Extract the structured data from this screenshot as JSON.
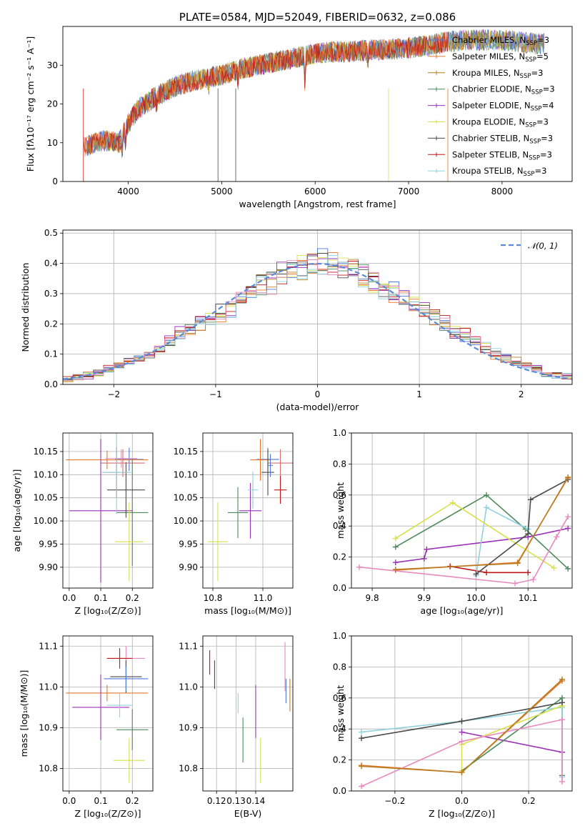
{
  "colors": {
    "series": [
      "#4e79d9",
      "#e8762a",
      "#b87d22",
      "#4e8a5a",
      "#9a2fb8",
      "#d9e04a",
      "#4a4a4a",
      "#c01818",
      "#8fd2de"
    ],
    "err": [
      "#4e79d9",
      "#e8762a",
      "#d96f6f",
      "#4e8a5a",
      "#9a2fb8",
      "#d9e04a",
      "#4a4a4a",
      "#c01818",
      "#8fd2de",
      "#e989bd"
    ],
    "weights": [
      "#e8762a",
      "#c01818",
      "#9a2fb8",
      "#4e8a5a",
      "#8fd2de",
      "#d9e04a",
      "#4a4a4a",
      "#e989bd",
      "#b87d22"
    ],
    "normal_curve": "#5b8bd6"
  },
  "chart_data": [
    {
      "id": "spectrum",
      "type": "line",
      "title": "PLATE=0584, MJD=52049, FIBERID=0632, z=0.086",
      "xlabel": "wavelength [Angstrom, rest frame]",
      "ylabel": "Flux [fλ10⁻¹⁷ erg cm⁻² s⁻¹ A⁻¹]",
      "xlim": [
        3300,
        8750
      ],
      "ylim": [
        0,
        40
      ],
      "xticks": [
        "4000",
        "5000",
        "6000",
        "7000",
        "8000"
      ],
      "yticks": [
        "0",
        "10",
        "20",
        "30"
      ],
      "legend_position": "right",
      "series": [
        {
          "name": "Chabrier MILES, N",
          "sub": "SSP",
          "suffix": "=3"
        },
        {
          "name": "Salpeter MILES, N",
          "sub": "SSP",
          "suffix": "=5"
        },
        {
          "name": "Kroupa MILES, N",
          "sub": "SSP",
          "suffix": "=3"
        },
        {
          "name": "Chabrier ELODIE, N",
          "sub": "SSP",
          "suffix": "=3"
        },
        {
          "name": "Salpeter ELODIE, N",
          "sub": "SSP",
          "suffix": "=4"
        },
        {
          "name": "Kroupa ELODIE, N",
          "sub": "SSP",
          "suffix": "=3"
        },
        {
          "name": "Chabrier STELIB, N",
          "sub": "SSP",
          "suffix": "=3"
        },
        {
          "name": "Salpeter STELIB, N",
          "sub": "SSP",
          "suffix": "=3"
        },
        {
          "name": "Kroupa STELIB, N",
          "sub": "SSP",
          "suffix": "=3"
        }
      ],
      "continuum": {
        "x": [
          3500,
          3600,
          3700,
          3800,
          3900,
          4000,
          4100,
          4300,
          4500,
          4700,
          5000,
          5200,
          5400,
          5600,
          5800,
          6000,
          6200,
          6400,
          6600,
          6800,
          7000,
          7200,
          7400,
          7600,
          7800,
          8000,
          8200,
          8400
        ],
        "y": [
          8.5,
          9.5,
          10.5,
          10.5,
          10,
          15,
          18.5,
          22,
          24.5,
          26,
          27.5,
          29,
          30,
          31,
          32,
          33,
          33.5,
          33.5,
          34,
          34,
          34.5,
          35,
          36,
          36.5,
          36.5,
          36.5,
          36,
          35.5
        ]
      }
    },
    {
      "id": "residual_hist",
      "type": "bar",
      "xlabel": "(data-model)/error",
      "ylabel": "Normed distribution",
      "xlim": [
        -2.5,
        2.5
      ],
      "ylim": [
        0,
        0.51
      ],
      "xticks": [
        "−2",
        "−1",
        "0",
        "1",
        "2"
      ],
      "yticks": [
        "0.0",
        "0.1",
        "0.2",
        "0.3",
        "0.4",
        "0.5"
      ],
      "legend": "𝒩(0, 1)",
      "bins": {
        "start": -2.5,
        "width": 0.1
      },
      "base_values": [
        0.02,
        0.025,
        0.03,
        0.035,
        0.05,
        0.06,
        0.075,
        0.09,
        0.1,
        0.12,
        0.14,
        0.165,
        0.18,
        0.2,
        0.22,
        0.24,
        0.255,
        0.28,
        0.3,
        0.32,
        0.34,
        0.36,
        0.375,
        0.39,
        0.4,
        0.4,
        0.4,
        0.39,
        0.375,
        0.36,
        0.34,
        0.32,
        0.3,
        0.28,
        0.255,
        0.24,
        0.22,
        0.2,
        0.18,
        0.165,
        0.14,
        0.12,
        0.1,
        0.09,
        0.075,
        0.06,
        0.05,
        0.035,
        0.03,
        0.025
      ]
    },
    {
      "id": "age_vs_Z",
      "type": "scatter",
      "xlabel": "Z [log₁₀(Z/Z⊙)]",
      "ylabel": "age  [log₁₀(age/yr)]",
      "xlim": [
        -0.02,
        0.265
      ],
      "ylim": [
        9.855,
        10.19
      ],
      "xticks": [
        "0.0",
        "0.1",
        "0.2"
      ],
      "yticks": [
        "9.90",
        "9.95",
        "10.00",
        "10.05",
        "10.10",
        "10.15"
      ],
      "points": [
        {
          "x": 0.19,
          "y": 10.133,
          "xerr": 0.045,
          "yerr": 0.025,
          "c": 0
        },
        {
          "x": 0.12,
          "y": 10.132,
          "xerr": 0.13,
          "yerr": 0.02,
          "c": 1
        },
        {
          "x": 0.17,
          "y": 10.125,
          "xerr": 0.07,
          "yerr": 0.03,
          "c": 2
        },
        {
          "x": 0.2,
          "y": 10.018,
          "xerr": 0.05,
          "yerr": 0.115,
          "c": 3
        },
        {
          "x": 0.1,
          "y": 10.022,
          "xerr": 0.1,
          "yerr": 0.155,
          "c": 4
        },
        {
          "x": 0.19,
          "y": 9.955,
          "xerr": 0.045,
          "yerr": 0.085,
          "c": 5
        },
        {
          "x": 0.18,
          "y": 10.067,
          "xerr": 0.06,
          "yerr": 0.06,
          "c": 6
        },
        {
          "x": 0.15,
          "y": 10.105,
          "xerr": 0.04,
          "yerr": 0.055,
          "c": 7
        },
        {
          "x": 0.15,
          "y": 10.105,
          "xerr": 0.05,
          "yerr": 0.09,
          "c": 8
        },
        {
          "x": 0.165,
          "y": 10.135,
          "xerr": 0.05,
          "yerr": 0.02,
          "c": 9
        }
      ]
    },
    {
      "id": "age_vs_mass",
      "type": "scatter",
      "xlabel": "mass [log₁₀(M/M⊙)]",
      "ylabel": "",
      "xlim": [
        10.76,
        11.12
      ],
      "ylim": [
        9.855,
        10.19
      ],
      "xticks": [
        "10.8",
        "11.0"
      ],
      "yticks": [
        "9.90",
        "9.95",
        "10.00",
        "10.05",
        "10.10",
        "10.15"
      ],
      "points": [
        {
          "x": 11.02,
          "y": 10.133,
          "xerr": 0.045,
          "yerr": 0.025,
          "c": 0
        },
        {
          "x": 10.99,
          "y": 10.132,
          "xerr": 0.04,
          "yerr": 0.045,
          "c": 1
        },
        {
          "x": 11.07,
          "y": 10.125,
          "xerr": 0.05,
          "yerr": 0.03,
          "c": 2
        },
        {
          "x": 10.9,
          "y": 10.018,
          "xerr": 0.04,
          "yerr": 0.055,
          "c": 3
        },
        {
          "x": 10.95,
          "y": 10.022,
          "xerr": 0.045,
          "yerr": 0.06,
          "c": 4
        },
        {
          "x": 10.82,
          "y": 9.955,
          "xerr": 0.04,
          "yerr": 0.085,
          "c": 5
        },
        {
          "x": 11.02,
          "y": 10.105,
          "xerr": 0.025,
          "yerr": 0.05,
          "c": 6
        },
        {
          "x": 11.07,
          "y": 10.067,
          "xerr": 0.025,
          "yerr": 0.03,
          "c": 7
        },
        {
          "x": 10.96,
          "y": 10.067,
          "xerr": 0.02,
          "yerr": 0.04,
          "c": 8
        },
        {
          "x": 11.03,
          "y": 10.12,
          "xerr": 0.01,
          "yerr": 0.025,
          "c": 0
        }
      ]
    },
    {
      "id": "mass_weight_vs_age",
      "type": "line",
      "xlabel": "age  [log₁₀(age/yr)]",
      "ylabel": "mass weight",
      "xlim": [
        9.76,
        10.185
      ],
      "ylim": [
        0,
        1
      ],
      "xticks": [
        "9.8",
        "9.9",
        "10.0",
        "10.1"
      ],
      "yticks": [
        "0.0",
        "0.2",
        "0.4",
        "0.6",
        "0.8",
        "1.0"
      ],
      "series": [
        {
          "c": 0,
          "x": [
            9.845,
            10.08,
            10.177
          ],
          "y": [
            0.115,
            0.165,
            0.71
          ]
        },
        {
          "c": 1,
          "x": [
            9.95,
            10.02,
            10.1
          ],
          "y": [
            0.14,
            0.1,
            0.1
          ]
        },
        {
          "c": 2,
          "x": [
            9.845,
            9.9,
            9.905,
            10.1,
            10.177
          ],
          "y": [
            0.165,
            0.19,
            0.25,
            0.33,
            0.385
          ]
        },
        {
          "c": 3,
          "x": [
            9.845,
            10.02,
            10.095,
            10.177
          ],
          "y": [
            0.265,
            0.6,
            0.38,
            0.125
          ]
        },
        {
          "c": 4,
          "x": [
            10.0,
            10.02,
            10.1
          ],
          "y": [
            0.08,
            0.52,
            0.38
          ]
        },
        {
          "c": 5,
          "x": [
            9.845,
            9.955,
            10.15
          ],
          "y": [
            0.32,
            0.55,
            0.13
          ]
        },
        {
          "c": 6,
          "x": [
            10.0,
            10.1,
            10.105,
            10.177
          ],
          "y": [
            0.09,
            0.35,
            0.57,
            0.7
          ]
        },
        {
          "c": 7,
          "x": [
            9.775,
            10.075,
            10.11,
            10.155,
            10.177
          ],
          "y": [
            0.135,
            0.03,
            0.055,
            0.33,
            0.46
          ]
        },
        {
          "c": 8,
          "x": [
            9.845,
            10.08,
            10.177
          ],
          "y": [
            0.12,
            0.16,
            0.715
          ]
        }
      ]
    },
    {
      "id": "mass_vs_Z",
      "type": "scatter",
      "xlabel": "Z [log₁₀(Z/Z⊙)]",
      "ylabel": "mass [log₁₀(M/M⊙)]",
      "xlim": [
        -0.02,
        0.265
      ],
      "ylim": [
        10.745,
        11.125
      ],
      "xticks": [
        "0.0",
        "0.1",
        "0.2"
      ],
      "yticks": [
        "10.8",
        "10.9",
        "11.0",
        "11.1"
      ],
      "points": [
        {
          "x": 0.18,
          "y": 11.07,
          "xerr": 0.06,
          "yerr": 0.03,
          "c": 9
        },
        {
          "x": 0.16,
          "y": 11.07,
          "xerr": 0.04,
          "yerr": 0.025,
          "c": 7
        },
        {
          "x": 0.18,
          "y": 11.025,
          "xerr": 0.05,
          "yerr": 0.04,
          "c": 6
        },
        {
          "x": 0.18,
          "y": 11.02,
          "xerr": 0.07,
          "yerr": 0.03,
          "c": 0
        },
        {
          "x": 0.12,
          "y": 10.985,
          "xerr": 0.13,
          "yerr": 0.02,
          "c": 1
        },
        {
          "x": 0.1,
          "y": 10.95,
          "xerr": 0.09,
          "yerr": 0.08,
          "c": 4
        },
        {
          "x": 0.16,
          "y": 10.955,
          "xerr": 0.04,
          "yerr": 0.03,
          "c": 8
        },
        {
          "x": 0.2,
          "y": 10.895,
          "xerr": 0.05,
          "yerr": 0.05,
          "c": 3
        },
        {
          "x": 0.19,
          "y": 10.82,
          "xerr": 0.05,
          "yerr": 0.055,
          "c": 5
        }
      ]
    },
    {
      "id": "mass_vs_EBV",
      "type": "scatter",
      "xlabel": "E(B-V)",
      "ylabel": "",
      "xlim": [
        0.113,
        0.159
      ],
      "ylim": [
        10.745,
        11.125
      ],
      "xticks": [
        "0.12",
        "0.13",
        "0.14"
      ],
      "yticks": [
        "10.8",
        "10.9",
        "11.0",
        "11.1"
      ],
      "points": [
        {
          "x": 0.1165,
          "y": 11.06,
          "xerr": 0,
          "yerr": 0.03,
          "c": 7
        },
        {
          "x": 0.119,
          "y": 11.03,
          "xerr": 0,
          "yerr": 0.035,
          "c": 6
        },
        {
          "x": 0.131,
          "y": 10.96,
          "xerr": 0,
          "yerr": 0.025,
          "c": 8
        },
        {
          "x": 0.1335,
          "y": 10.87,
          "xerr": 0,
          "yerr": 0.055,
          "c": 3
        },
        {
          "x": 0.14,
          "y": 10.94,
          "xerr": 0,
          "yerr": 0.065,
          "c": 4
        },
        {
          "x": 0.1425,
          "y": 10.82,
          "xerr": 0,
          "yerr": 0.055,
          "c": 5
        },
        {
          "x": 0.155,
          "y": 11.05,
          "xerr": 0,
          "yerr": 0.06,
          "c": 9
        },
        {
          "x": 0.1555,
          "y": 10.99,
          "xerr": 0,
          "yerr": 0.03,
          "c": 0
        },
        {
          "x": 0.1575,
          "y": 10.98,
          "xerr": 0,
          "yerr": 0.04,
          "c": 1
        }
      ]
    },
    {
      "id": "mass_weight_vs_Z",
      "type": "line",
      "xlabel": "Z [log₁₀(Z/Z⊙)]",
      "ylabel": "mass weight",
      "xlim": [
        -0.33,
        0.33
      ],
      "ylim": [
        0,
        1
      ],
      "xticks": [
        "−0.2",
        "0.0",
        "0.2"
      ],
      "yticks": [
        "0.0",
        "0.2",
        "0.4",
        "0.6",
        "0.8",
        "1.0"
      ],
      "series": [
        {
          "c": 0,
          "x": [
            -0.3,
            0.0,
            0.3
          ],
          "y": [
            0.165,
            0.12,
            0.71
          ]
        },
        {
          "c": 2,
          "x": [
            0.0,
            0.3
          ],
          "y": [
            0.38,
            0.25
          ]
        },
        {
          "c": 3,
          "x": [
            0.0,
            0.3,
            0.3
          ],
          "y": [
            0.13,
            0.6,
            0.1
          ]
        },
        {
          "c": 4,
          "x": [
            -0.3,
            0.0,
            0.3,
            0.3
          ],
          "y": [
            0.38,
            0.45,
            0.54,
            0.09
          ]
        },
        {
          "c": 5,
          "x": [
            0.0,
            0.0,
            0.3
          ],
          "y": [
            0.13,
            0.3,
            0.55
          ]
        },
        {
          "c": 6,
          "x": [
            -0.3,
            0.0,
            0.3
          ],
          "y": [
            0.34,
            0.45,
            0.57
          ]
        },
        {
          "c": 7,
          "x": [
            -0.3,
            0.0,
            0.3,
            0.3
          ],
          "y": [
            0.03,
            0.32,
            0.46,
            0.06
          ]
        },
        {
          "c": 8,
          "x": [
            -0.3,
            0.0,
            0.3
          ],
          "y": [
            0.16,
            0.12,
            0.72
          ]
        }
      ]
    }
  ]
}
